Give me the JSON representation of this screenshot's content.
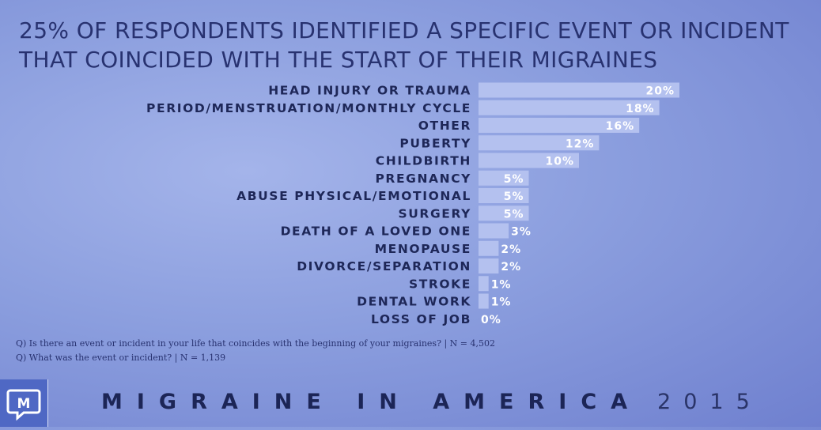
{
  "title": {
    "line1": "25% OF RESPONDENTS IDENTIFIED A SPECIFIC EVENT OR INCIDENT",
    "line2": "THAT COINCIDED WITH THE START OF THEIR MIGRAINES"
  },
  "chart_data": {
    "type": "bar",
    "orientation": "horizontal",
    "title": "25% OF RESPONDENTS IDENTIFIED A SPECIFIC EVENT OR INCIDENT THAT COINCIDED WITH THE START OF THEIR MIGRAINES",
    "categories": [
      "HEAD INJURY OR TRAUMA",
      "PERIOD/MENSTRUATION/MONTHLY CYCLE",
      "OTHER",
      "PUBERTY",
      "CHILDBIRTH",
      "PREGNANCY",
      "ABUSE PHYSICAL/EMOTIONAL",
      "SURGERY",
      "DEATH OF A LOVED ONE",
      "MENOPAUSE",
      "DIVORCE/SEPARATION",
      "STROKE",
      "DENTAL WORK",
      "LOSS OF JOB"
    ],
    "values": [
      20,
      18,
      16,
      12,
      10,
      5,
      5,
      5,
      3,
      2,
      2,
      1,
      1,
      0
    ],
    "value_labels": [
      "20%",
      "18%",
      "16%",
      "12%",
      "10%",
      "5%",
      "5%",
      "5%",
      "3%",
      "2%",
      "2%",
      "1%",
      "1%",
      "0%"
    ],
    "unit": "%",
    "grid": false,
    "legend": "none",
    "bar_color": "#b4c1ef"
  },
  "notes": [
    "Q) Is there an event or incident in your life that coincides with the beginning of your migraines? | N = 4,502",
    "Q) What was the event or incident? | N = 1,139"
  ],
  "footer": {
    "brand": "MIGRAINE IN AMERICA",
    "year": "2015"
  },
  "logo": {
    "letter": "M",
    "color": "#4f68c4"
  }
}
